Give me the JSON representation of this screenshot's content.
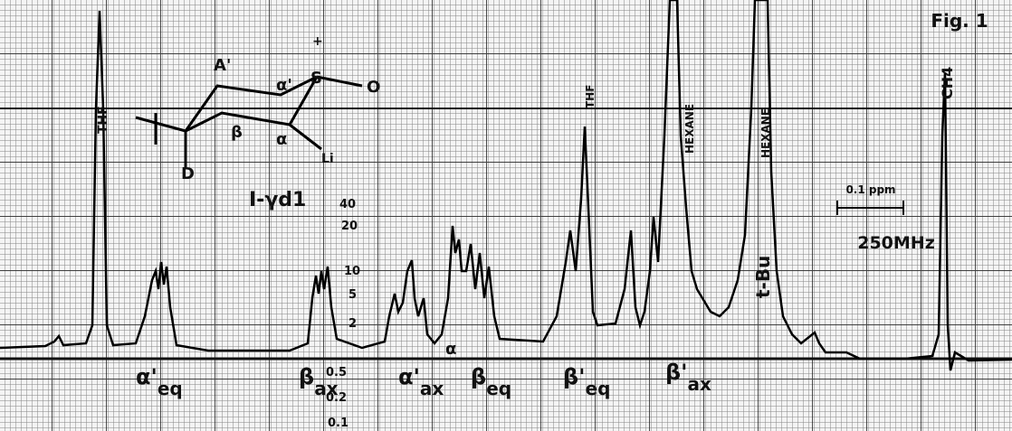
{
  "figure": {
    "title": "Fig. 1",
    "field": "250MHz",
    "scale_bar": "0.1 ppm",
    "peak_labels": [
      "THF",
      "THF",
      "HEXANE",
      "HEXANE",
      "t-Bu",
      "CH4"
    ],
    "assignments": [
      {
        "symbol": "α'",
        "sub": "eq"
      },
      {
        "symbol": "β",
        "sub": "ax"
      },
      {
        "symbol": "α'",
        "sub": "ax"
      },
      {
        "symbol": "β",
        "sub": "eq"
      },
      {
        "symbol": "β'",
        "sub": "eq"
      },
      {
        "symbol": "β'",
        "sub": "ax"
      },
      {
        "symbol": "α",
        "sub": ""
      }
    ],
    "gain_scale": [
      "40",
      "20",
      "10",
      "5",
      "2",
      "0.5",
      "0.2",
      "0.1"
    ],
    "structure": {
      "labels": [
        "A'",
        "α'",
        "S",
        "O",
        "β",
        "α",
        "Li",
        "D",
        "+"
      ],
      "compound": "I-γd1"
    }
  }
}
